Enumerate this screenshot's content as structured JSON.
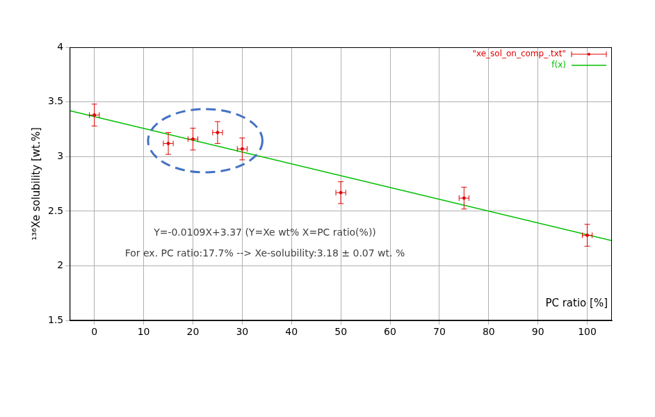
{
  "chart_data": {
    "type": "scatter",
    "x_label": "PC ratio [%]",
    "y_label": "¹³⁶Xe solubility [wt.%]",
    "annotations": [
      "Y=-0.0109X+3.37 (Y=Xe wt% X=PC ratio(%))",
      "For ex. PC ratio:17.7% --> Xe-solubility:3.18 ± 0.07 wt. %"
    ],
    "series": [
      {
        "name": "\"xe_sol_on_comp_.txt\"",
        "type": "scatter",
        "marker": "point",
        "color": "#e00000",
        "x": [
          0,
          15,
          20,
          25,
          30,
          50,
          75,
          100
        ],
        "values": [
          3.38,
          3.12,
          3.16,
          3.22,
          3.07,
          2.67,
          2.62,
          2.28
        ],
        "x_err": [
          1,
          1,
          1,
          1,
          1,
          1,
          1,
          1
        ],
        "y_err": [
          0.1,
          0.1,
          0.1,
          0.1,
          0.1,
          0.1,
          0.1,
          0.1
        ]
      },
      {
        "name": "f(x)",
        "type": "line",
        "line_style": "solid",
        "color": "#00c000",
        "x": [
          -5,
          105
        ],
        "values": [
          3.42,
          2.23
        ]
      }
    ],
    "xlim": [
      -5,
      105
    ],
    "xticks": [
      0,
      10,
      20,
      30,
      40,
      50,
      60,
      70,
      80,
      90,
      100
    ],
    "ylim": [
      1.5,
      4
    ],
    "yticks": [
      1.5,
      2,
      2.5,
      3,
      3.5,
      4
    ],
    "grid": true,
    "legend": "top-right"
  }
}
